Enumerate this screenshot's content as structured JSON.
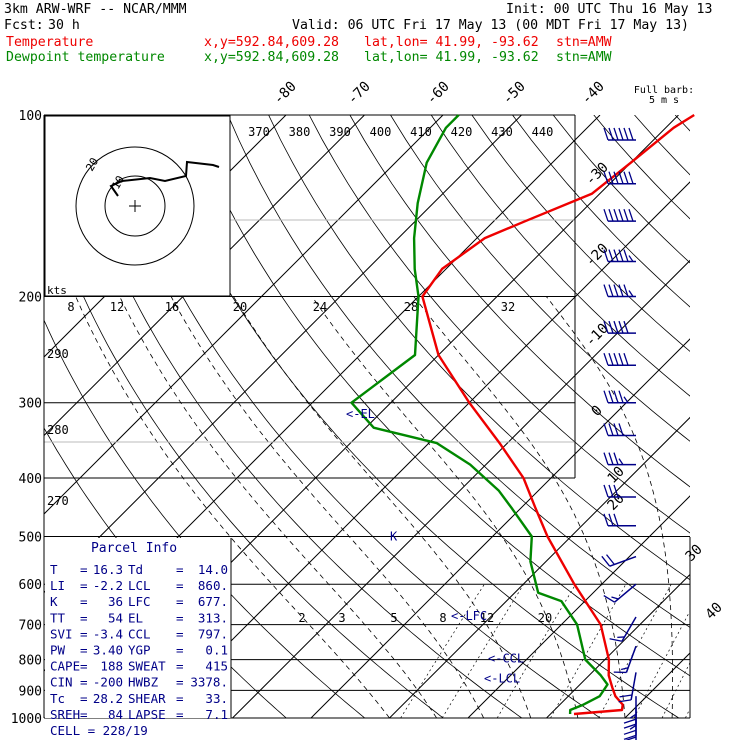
{
  "header": {
    "model": "3km ARW-WRF -- NCAR/MMM",
    "init": "Init: 00 UTC Thu 16 May 13",
    "fcst_label": "Fcst:",
    "fcst_value": "30 h",
    "valid": "Valid: 06 UTC Fri 17 May 13 (00 MDT Fri 17 May 13)",
    "lines": [
      {
        "name": "Temperature",
        "xy": "x,y=592.84,609.28",
        "latlon": "lat,lon= 41.99, -93.62",
        "stn": "stn=AMW",
        "color": "#ee0000"
      },
      {
        "name": "Dewpoint temperature",
        "xy": "x,y=592.84,609.28",
        "latlon": "lat,lon= 41.99, -93.62",
        "stn": "stn=AMW",
        "color": "#008800"
      }
    ]
  },
  "full_barb_label": [
    "Full barb:",
    "5 m s"
  ],
  "hodograph": {
    "unit": "kts",
    "ring_labels": [
      "20",
      "10"
    ]
  },
  "parcel_info": {
    "title": "Parcel Info",
    "rows": [
      [
        "T",
        "16.3",
        "Td",
        "14.0"
      ],
      [
        "LI",
        "-2.2",
        "LCL",
        "860."
      ],
      [
        "K",
        "36",
        "LFC",
        "677."
      ],
      [
        "TT",
        "54",
        "EL",
        "313."
      ],
      [
        "SVI",
        "-3.4",
        "CCL",
        "797."
      ],
      [
        "PW",
        "3.40",
        "YGP",
        "0.1"
      ],
      [
        "CAPE",
        "188",
        "SWEAT",
        "415"
      ],
      [
        "CIN",
        "-200",
        "HWBZ",
        "3378."
      ],
      [
        "Tc",
        "28.2",
        "SHEAR",
        "33."
      ],
      [
        "SREH",
        "84",
        "LAPSE",
        "7.1"
      ]
    ],
    "cell": "CELL = 228/19"
  },
  "chart_data": {
    "type": "line",
    "chart_kind": "skew-T log-p",
    "y_scale": "log",
    "ylim": [
      1000,
      100
    ],
    "pressure_ticks": [
      100,
      200,
      300,
      400,
      500,
      600,
      700,
      800,
      900,
      1000
    ],
    "temperature_ticks": [
      "-80",
      "-70",
      "-60",
      "-50",
      "-40",
      "-30",
      "-20",
      "-10",
      "0",
      "10",
      "20",
      "30",
      "40"
    ],
    "theta_ticks": [
      "370",
      "380",
      "390",
      "400",
      "410",
      "420",
      "430",
      "440"
    ],
    "theta_side_ticks": [
      "290",
      "280",
      "270"
    ],
    "mixing_ratio_top": [
      "8",
      "12",
      "16",
      "20",
      "24",
      "28",
      "32"
    ],
    "mixing_ratio_low": [
      "2",
      "3",
      "5",
      "8",
      "12",
      "20"
    ],
    "levels": [
      {
        "label": "<-EL",
        "p": 313
      },
      {
        "label": "<-LFC",
        "p": 677
      },
      {
        "label": "K",
        "p": 500
      },
      {
        "label": "<-CCL",
        "p": 797
      },
      {
        "label": "<-LCL",
        "p": 860
      }
    ],
    "series": [
      {
        "name": "Temperature",
        "color": "#ee0000",
        "points": [
          [
            985,
            13
          ],
          [
            970,
            18.6
          ],
          [
            950,
            18
          ],
          [
            920,
            16
          ],
          [
            890,
            14.5
          ],
          [
            850,
            12.5
          ],
          [
            800,
            10.5
          ],
          [
            700,
            5
          ],
          [
            600,
            -3.5
          ],
          [
            500,
            -13
          ],
          [
            450,
            -18
          ],
          [
            400,
            -23.5
          ],
          [
            350,
            -31
          ],
          [
            300,
            -40
          ],
          [
            250,
            -50
          ],
          [
            200,
            -59.5
          ],
          [
            180,
            -60.5
          ],
          [
            160,
            -59
          ],
          [
            150,
            -56
          ],
          [
            135,
            -51
          ],
          [
            120,
            -50
          ],
          [
            105,
            -49
          ],
          [
            100,
            -48
          ]
        ]
      },
      {
        "name": "Dewpoint temperature",
        "color": "#008800",
        "points": [
          [
            985,
            12.5
          ],
          [
            970,
            12
          ],
          [
            950,
            13
          ],
          [
            920,
            14
          ],
          [
            880,
            13.5
          ],
          [
            850,
            11.5
          ],
          [
            800,
            7.5
          ],
          [
            700,
            2
          ],
          [
            640,
            -3
          ],
          [
            620,
            -7
          ],
          [
            550,
            -12
          ],
          [
            500,
            -15
          ],
          [
            450,
            -21
          ],
          [
            420,
            -25
          ],
          [
            380,
            -32
          ],
          [
            350,
            -39
          ],
          [
            330,
            -49
          ],
          [
            300,
            -55
          ],
          [
            250,
            -53
          ],
          [
            200,
            -60
          ],
          [
            180,
            -64
          ],
          [
            160,
            -68
          ],
          [
            140,
            -72
          ],
          [
            120,
            -76
          ],
          [
            105,
            -78
          ],
          [
            100,
            -78
          ]
        ]
      }
    ],
    "wind_barbs_note": "wind barbs along the right edge",
    "wind_barbs": [
      {
        "p": 110,
        "dir": 270,
        "spd": 60
      },
      {
        "p": 130,
        "dir": 270,
        "spd": 60
      },
      {
        "p": 150,
        "dir": 270,
        "spd": 60
      },
      {
        "p": 175,
        "dir": 270,
        "spd": 55
      },
      {
        "p": 200,
        "dir": 270,
        "spd": 55
      },
      {
        "p": 230,
        "dir": 270,
        "spd": 50
      },
      {
        "p": 260,
        "dir": 270,
        "spd": 50
      },
      {
        "p": 300,
        "dir": 270,
        "spd": 45
      },
      {
        "p": 340,
        "dir": 270,
        "spd": 40
      },
      {
        "p": 380,
        "dir": 270,
        "spd": 35
      },
      {
        "p": 430,
        "dir": 270,
        "spd": 30
      },
      {
        "p": 480,
        "dir": 270,
        "spd": 30
      },
      {
        "p": 540,
        "dir": 250,
        "spd": 20
      },
      {
        "p": 600,
        "dir": 230,
        "spd": 15
      },
      {
        "p": 680,
        "dir": 210,
        "spd": 15
      },
      {
        "p": 760,
        "dir": 200,
        "spd": 15
      },
      {
        "p": 840,
        "dir": 190,
        "spd": 20
      },
      {
        "p": 920,
        "dir": 180,
        "spd": 25
      },
      {
        "p": 960,
        "dir": 180,
        "spd": 25
      },
      {
        "p": 985,
        "dir": 180,
        "spd": 20
      }
    ]
  }
}
